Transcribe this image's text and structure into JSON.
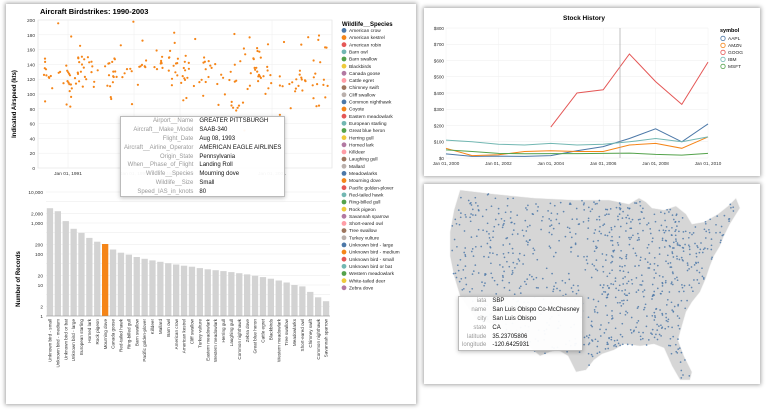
{
  "colors": {
    "accent": "#f58518",
    "bar_gray": "#d3d3d3",
    "grid": "#e6e6e6"
  },
  "birdstrikes": {
    "title": "Aircraft Birdstrikes: 1990-2003",
    "ylabel": "Indicated Airspeed (kts)",
    "x_ticks": [
      "Jan 01, 1991",
      "Jan 01, 1995",
      "Jan 01, 1997",
      "Jan 01, 2001"
    ],
    "y_ticks": [
      "0",
      "20",
      "40",
      "60",
      "80",
      "100",
      "120",
      "140",
      "160",
      "180",
      "200"
    ],
    "legend_title": "Wildlife__Species",
    "legend_items": [
      "American crow",
      "American kestrel",
      "American robin",
      "Barn owl",
      "Barn swallow",
      "Blackbirds",
      "Canada goose",
      "Cattle egret",
      "Chimney swift",
      "Cliff swallow",
      "Common nighthawk",
      "Coyote",
      "Eastern meadowlark",
      "European starling",
      "Great blue heron",
      "Herring gull",
      "Horned lark",
      "Killdeer",
      "Laughing gull",
      "Mallard",
      "Meadowlarks",
      "Mourning dove",
      "Pacific golden-plover",
      "Red-tailed hawk",
      "Ring-billed gull",
      "Rock pigeon",
      "Savannah sparrow",
      "Short-eared owl",
      "Tree swallow",
      "Turkey vulture",
      "Unknown bird - large",
      "Unknown bird - medium",
      "Unknown bird - small",
      "Unknown bird or bat",
      "Western meadowlark",
      "White-tailed deer",
      "Zebra dove"
    ],
    "tooltip": [
      {
        "key": "Airport__Name",
        "value": "GREATER PITTSBURGH"
      },
      {
        "key": "Aircraft__Make_Model",
        "value": "SAAB-340"
      },
      {
        "key": "Flight_Date",
        "value": "Aug 08, 1993"
      },
      {
        "key": "Aircraft__Airline_Operator",
        "value": "AMERICAN EAGLE AIRLINES"
      },
      {
        "key": "Origin_State",
        "value": "Pennsylvania"
      },
      {
        "key": "When__Phase_of_Flight",
        "value": "Landing Roll"
      },
      {
        "key": "Wildlife__Species",
        "value": "Mourning dove"
      },
      {
        "key": "Wildlife__Size",
        "value": "Small"
      },
      {
        "key": "Speed_IAS_in_knots",
        "value": "80"
      }
    ]
  },
  "records": {
    "ylabel": "Number of Records",
    "y_ticks": [
      "10,000",
      "2,000",
      "1,000",
      "200",
      "100",
      "20",
      "10",
      "2",
      "1"
    ],
    "highlight": "Mourning dove"
  },
  "chart_data": [
    {
      "type": "scatter",
      "title": "Aircraft Birdstrikes: 1990-2003",
      "ylabel": "Indicated Airspeed (kts)",
      "ylim": [
        0,
        200
      ],
      "legend": "right",
      "note": "individual strikes by date and airspeed, colored by Wildlife__Species"
    },
    {
      "type": "bar",
      "ylabel": "Number of Records",
      "yscale": "log",
      "ylim": [
        1,
        10000
      ],
      "categories": [
        "Unknown bird - small",
        "Unknown bird - medium",
        "Unknown bird or bat",
        "Unknown bird - large",
        "European starling",
        "Horned lark",
        "Rock pigeon",
        "Mourning dove",
        "Canada goose",
        "Red-tailed hawk",
        "Ring-billed gull",
        "Barn swallow",
        "Pacific golden-plover",
        "Killdeer",
        "Mallard",
        "Barn owl",
        "American crow",
        "American kestrel",
        "Cliff swallow",
        "Turkey vulture",
        "Eastern meadowlark",
        "Western meadowlark",
        "Herring gull",
        "Laughing gull",
        "Common nighthawk",
        "Zebra dove",
        "Great blue heron",
        "Cattle egret",
        "Blackbirds",
        "Western meadowlark",
        "Tree swallow",
        "Meadowlarks",
        "Short-eared owl",
        "Chimney swift",
        "Common nighthawk",
        "Savannah sparrow"
      ],
      "values": [
        3000,
        2400,
        1150,
        650,
        480,
        330,
        250,
        210,
        140,
        110,
        95,
        80,
        70,
        62,
        56,
        50,
        46,
        42,
        39,
        35,
        32,
        30,
        28,
        26,
        24,
        22,
        20,
        18,
        16,
        14,
        12,
        10,
        9,
        6,
        4,
        3
      ]
    },
    {
      "type": "line",
      "title": "Stock History",
      "legend_title": "symbol",
      "x_ticks": [
        "Jan 01, 2000",
        "Jan 01, 2002",
        "Jan 01, 2004",
        "Jan 01, 2006",
        "Jan 01, 2008",
        "Jan 01, 2010"
      ],
      "y_ticks": [
        "$0",
        "$100",
        "$200",
        "$300",
        "$400",
        "$500",
        "$600",
        "$700",
        "$800"
      ],
      "ylim": [
        0,
        800
      ],
      "x": [
        "2000",
        "2001",
        "2002",
        "2003",
        "2004",
        "2005",
        "2006",
        "2007",
        "2008",
        "2009",
        "2010"
      ],
      "series": [
        {
          "name": "AAPL",
          "color": "#4c78a8",
          "values": [
            25,
            10,
            12,
            10,
            15,
            45,
            70,
            120,
            180,
            100,
            210
          ]
        },
        {
          "name": "AMZN",
          "color": "#f58518",
          "values": [
            60,
            15,
            20,
            40,
            45,
            40,
            40,
            80,
            90,
            60,
            130
          ]
        },
        {
          "name": "GOOG",
          "color": "#e45756",
          "values": [
            null,
            null,
            null,
            null,
            190,
            400,
            420,
            640,
            470,
            330,
            590
          ]
        },
        {
          "name": "IBM",
          "color": "#72b7b2",
          "values": [
            110,
            100,
            85,
            80,
            90,
            80,
            85,
            100,
            120,
            100,
            130
          ]
        },
        {
          "name": "MSFT",
          "color": "#54a24b",
          "values": [
            50,
            40,
            28,
            26,
            27,
            27,
            28,
            30,
            22,
            18,
            28
          ]
        }
      ]
    },
    {
      "type": "scatter",
      "note": "US airports plotted on a map",
      "tooltip": [
        {
          "key": "iata",
          "value": "SBP"
        },
        {
          "key": "name",
          "value": "San Luis Obispo Co-McChesney"
        },
        {
          "key": "city",
          "value": "San Luis Obispo"
        },
        {
          "key": "state",
          "value": "CA"
        },
        {
          "key": "latitude",
          "value": "35.23705806"
        },
        {
          "key": "longitude",
          "value": "-120.6425931"
        }
      ]
    }
  ],
  "stock": {
    "title": "Stock History",
    "x_ticks": [
      "Jan 01, 2000",
      "Jan 01, 2002",
      "Jan 01, 2004",
      "Jan 01, 2006",
      "Jan 01, 2008",
      "Jan 01, 2010"
    ],
    "y_ticks": [
      "$0",
      "$100",
      "$200",
      "$300",
      "$400",
      "$500",
      "$600",
      "$700",
      "$800"
    ],
    "legend_title": "symbol"
  },
  "map": {
    "tooltip": [
      {
        "key": "iata",
        "value": "SBP"
      },
      {
        "key": "name",
        "value": "San Luis Obispo Co-McChesney"
      },
      {
        "key": "city",
        "value": "San Luis Obispo"
      },
      {
        "key": "state",
        "value": "CA"
      },
      {
        "key": "latitude",
        "value": "35.23705806"
      },
      {
        "key": "longitude",
        "value": "-120.6425931"
      }
    ]
  }
}
